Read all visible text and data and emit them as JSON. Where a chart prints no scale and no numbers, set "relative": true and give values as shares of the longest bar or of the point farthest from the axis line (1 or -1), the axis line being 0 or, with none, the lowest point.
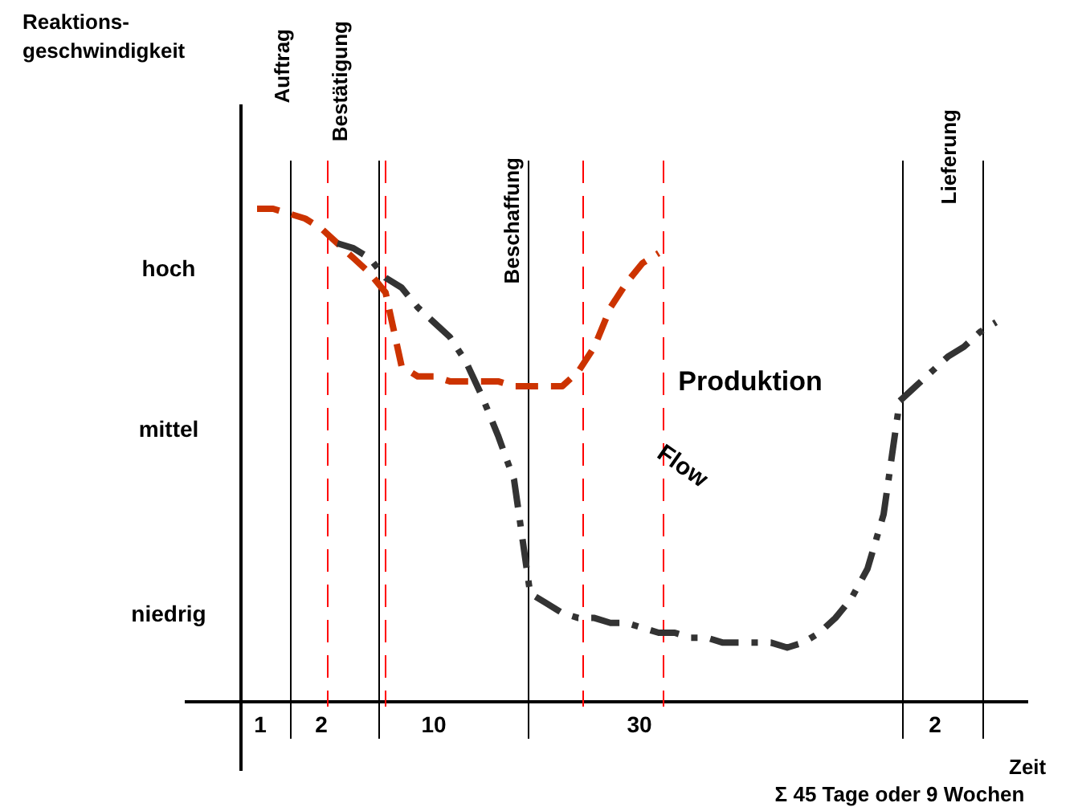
{
  "chart_data": {
    "type": "line",
    "relative": true,
    "xlabel": "Zeit",
    "categories": [
      null,
      null,
      null,
      null,
      null,
      null,
      null,
      null,
      null,
      null,
      null,
      null,
      null,
      null,
      null,
      null,
      null,
      null,
      null,
      null,
      null,
      null,
      null,
      null,
      null,
      null,
      null,
      null,
      null,
      null,
      null,
      null,
      null,
      null,
      null,
      null,
      null,
      null,
      null,
      null,
      null,
      null,
      null,
      null,
      null,
      null,
      null,
      null,
      null,
      null
    ],
    "tick_labels": false,
    "grid": "x",
    "marker": "none",
    "series": [
      {
        "color": "#cc3300",
        "line_style": "dashed",
        "values": [
          null,
          1.0,
          1.0,
          0.99,
          0.98,
          0.96,
          0.93,
          0.9,
          0.87,
          0.83,
          0.68,
          0.66,
          0.66,
          0.65,
          0.65,
          0.65,
          0.65,
          0.64,
          0.64,
          0.64,
          0.64,
          0.67,
          0.72,
          0.8,
          0.85,
          0.89,
          0.91,
          null,
          null,
          null,
          null,
          null,
          null,
          null,
          null,
          null,
          null,
          null,
          null,
          null,
          null,
          null,
          null,
          null,
          null,
          null,
          null,
          null,
          null,
          null
        ]
      },
      {
        "color": "#333333",
        "line_style": "dashdot",
        "values": [
          null,
          null,
          null,
          null,
          null,
          null,
          0.93,
          0.92,
          0.9,
          0.86,
          0.84,
          0.8,
          0.77,
          0.74,
          0.69,
          0.62,
          0.54,
          0.45,
          0.22,
          0.2,
          0.18,
          0.17,
          0.17,
          0.16,
          0.16,
          0.15,
          0.14,
          0.14,
          0.13,
          0.13,
          0.12,
          0.12,
          0.12,
          0.12,
          0.11,
          0.12,
          0.14,
          0.17,
          0.21,
          0.27,
          0.38,
          0.61,
          0.64,
          0.67,
          0.7,
          0.72,
          0.75,
          0.77,
          null,
          null
        ]
      }
    ],
    "annotations": [
      "Reaktions-\ngeschwindigkeit",
      "Auftrag",
      "Bestätigung",
      "Beschaffung",
      "Lieferung",
      "hoch",
      "mittel",
      "niedrig",
      "1",
      "2",
      "10",
      "30",
      "2",
      "Produktion",
      "Flow",
      "Σ 45 Tage oder 9 Wochen"
    ]
  }
}
